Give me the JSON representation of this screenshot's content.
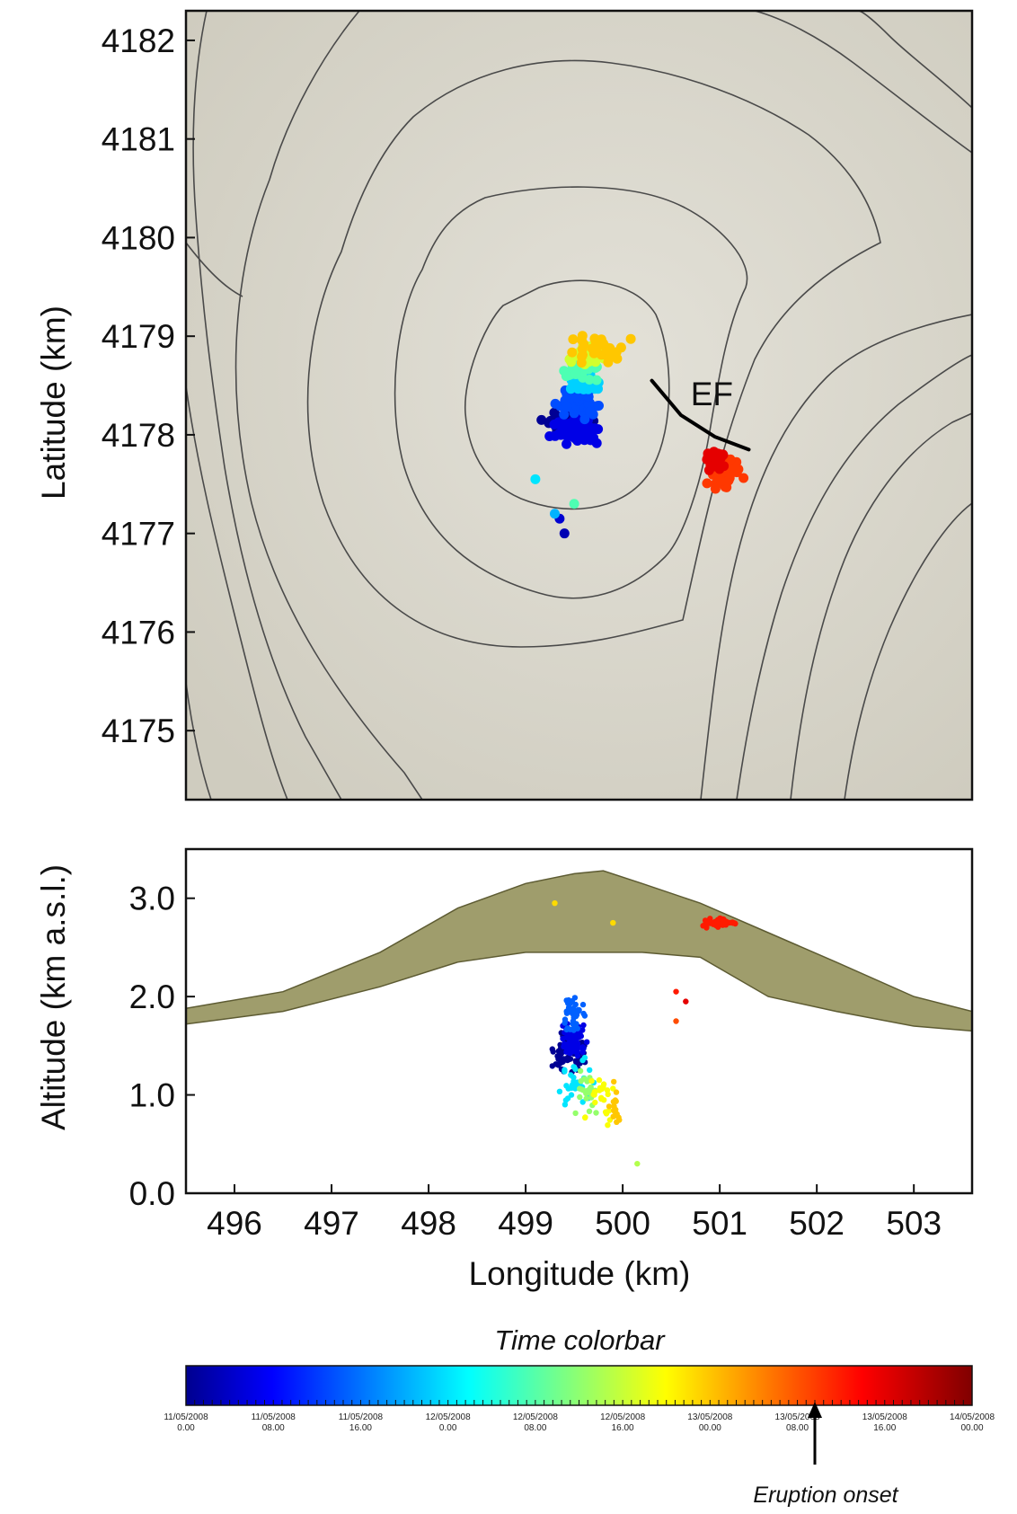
{
  "colors": {
    "map_background": "#d6d3c8",
    "contour": "#4a4a4a",
    "topo_fill": "#8e8c52",
    "topo_edge": "#5d5b32",
    "fissure": "#000000"
  },
  "chart_data": [
    {
      "type": "scatter",
      "ylabel": "Latitude (km)",
      "xlim": [
        495.5,
        503.6
      ],
      "ylim": [
        4174.3,
        4182.3
      ],
      "yticks": [
        "4175",
        "4176",
        "4177",
        "4178",
        "4179",
        "4180",
        "4181",
        "4182"
      ],
      "yticks_values": [
        4175,
        4176,
        4177,
        4178,
        4179,
        4180,
        4181,
        4182
      ],
      "grid": false,
      "annotation": "EF",
      "fissure_line": [
        [
          500.3,
          4178.55
        ],
        [
          500.6,
          4178.2
        ],
        [
          500.95,
          4177.98
        ],
        [
          501.3,
          4177.85
        ]
      ],
      "clusters": [
        {
          "time": 0.02,
          "center": [
            499.45,
            4178.1
          ],
          "spread": [
            0.28,
            0.14
          ],
          "count": 90
        },
        {
          "time": 0.1,
          "center": [
            499.55,
            4178.05
          ],
          "spread": [
            0.3,
            0.16
          ],
          "count": 70
        },
        {
          "time": 0.2,
          "center": [
            499.55,
            4178.3
          ],
          "spread": [
            0.25,
            0.15
          ],
          "count": 45
        },
        {
          "time": 0.33,
          "center": [
            499.6,
            4178.55
          ],
          "spread": [
            0.22,
            0.15
          ],
          "count": 40
        },
        {
          "time": 0.45,
          "center": [
            499.55,
            4178.65
          ],
          "spread": [
            0.22,
            0.12
          ],
          "count": 25
        },
        {
          "time": 0.58,
          "center": [
            499.6,
            4178.8
          ],
          "spread": [
            0.3,
            0.12
          ],
          "count": 30
        },
        {
          "time": 0.68,
          "center": [
            499.7,
            4178.85
          ],
          "spread": [
            0.4,
            0.2
          ],
          "count": 30
        },
        {
          "time": 0.82,
          "center": [
            501.05,
            4177.6
          ],
          "spread": [
            0.2,
            0.2
          ],
          "count": 60
        },
        {
          "time": 0.9,
          "center": [
            500.95,
            4177.75
          ],
          "spread": [
            0.15,
            0.12
          ],
          "count": 40
        }
      ],
      "outliers": [
        {
          "time": 0.05,
          "x": 499.4,
          "y": 4177.0
        },
        {
          "time": 0.08,
          "x": 499.35,
          "y": 4177.15
        },
        {
          "time": 0.3,
          "x": 499.3,
          "y": 4177.2
        },
        {
          "time": 0.45,
          "x": 499.5,
          "y": 4177.3
        },
        {
          "time": 0.35,
          "x": 499.1,
          "y": 4177.55
        }
      ]
    },
    {
      "type": "scatter",
      "xlabel": "Longitude (km)",
      "ylabel": "Altitude (km a.s.l.)",
      "xlim": [
        495.5,
        503.6
      ],
      "ylim": [
        0.0,
        3.5
      ],
      "xticks": [
        "496",
        "497",
        "498",
        "499",
        "500",
        "501",
        "502",
        "503"
      ],
      "xticks_values": [
        496,
        497,
        498,
        499,
        500,
        501,
        502,
        503
      ],
      "yticks": [
        "0.0",
        "1.0",
        "2.0",
        "3.0"
      ],
      "yticks_values": [
        0.0,
        1.0,
        2.0,
        3.0
      ],
      "grid": false,
      "topography_top": [
        [
          495.5,
          1.88
        ],
        [
          496.5,
          2.05
        ],
        [
          497.5,
          2.45
        ],
        [
          498.3,
          2.9
        ],
        [
          499.0,
          3.15
        ],
        [
          499.5,
          3.25
        ],
        [
          499.8,
          3.28
        ],
        [
          500.2,
          3.15
        ],
        [
          500.8,
          2.95
        ],
        [
          501.5,
          2.65
        ],
        [
          502.2,
          2.35
        ],
        [
          503.0,
          2.0
        ],
        [
          503.6,
          1.85
        ]
      ],
      "topography_bottom": [
        [
          495.5,
          1.72
        ],
        [
          496.5,
          1.85
        ],
        [
          497.5,
          2.1
        ],
        [
          498.3,
          2.35
        ],
        [
          499.0,
          2.45
        ],
        [
          499.5,
          2.45
        ],
        [
          500.2,
          2.45
        ],
        [
          500.8,
          2.4
        ],
        [
          501.5,
          2.0
        ],
        [
          502.2,
          1.85
        ],
        [
          503.0,
          1.7
        ],
        [
          503.6,
          1.65
        ]
      ],
      "clusters": [
        {
          "time": 0.02,
          "center": [
            499.45,
            1.45
          ],
          "spread": [
            0.18,
            0.3
          ],
          "count": 90
        },
        {
          "time": 0.1,
          "center": [
            499.5,
            1.55
          ],
          "spread": [
            0.15,
            0.25
          ],
          "count": 80
        },
        {
          "time": 0.22,
          "center": [
            499.5,
            1.8
          ],
          "spread": [
            0.15,
            0.25
          ],
          "count": 40
        },
        {
          "time": 0.35,
          "center": [
            499.5,
            1.15
          ],
          "spread": [
            0.2,
            0.35
          ],
          "count": 30
        },
        {
          "time": 0.52,
          "center": [
            499.65,
            1.05
          ],
          "spread": [
            0.2,
            0.35
          ],
          "count": 25
        },
        {
          "time": 0.62,
          "center": [
            499.75,
            1.0
          ],
          "spread": [
            0.2,
            0.3
          ],
          "count": 25
        },
        {
          "time": 0.68,
          "center": [
            499.9,
            0.85
          ],
          "spread": [
            0.15,
            0.25
          ],
          "count": 15
        },
        {
          "time": 0.85,
          "center": [
            501.0,
            2.75
          ],
          "spread": [
            0.2,
            0.05
          ],
          "count": 70
        }
      ],
      "outliers": [
        {
          "time": 0.66,
          "x": 499.3,
          "y": 2.95
        },
        {
          "time": 0.66,
          "x": 499.9,
          "y": 2.75
        },
        {
          "time": 0.85,
          "x": 500.55,
          "y": 2.05
        },
        {
          "time": 0.9,
          "x": 500.65,
          "y": 1.95
        },
        {
          "time": 0.8,
          "x": 500.55,
          "y": 1.75
        },
        {
          "time": 0.55,
          "x": 500.15,
          "y": 0.3
        }
      ]
    }
  ],
  "colorbar": {
    "title": "Time colorbar",
    "annotation": "Eruption onset",
    "annotation_position": 0.8,
    "tick_labels": [
      [
        "11/05/2008",
        "0.00"
      ],
      [
        "11/05/2008",
        "08.00"
      ],
      [
        "11/05/2008",
        "16.00"
      ],
      [
        "12/05/2008",
        "0.00"
      ],
      [
        "12/05/2008",
        "08.00"
      ],
      [
        "12/05/2008",
        "16.00"
      ],
      [
        "13/05/2008",
        "00.00"
      ],
      [
        "13/05/2008",
        "08.00"
      ],
      [
        "13/05/2008",
        "16.00"
      ],
      [
        "14/05/2008",
        "00.00"
      ]
    ]
  }
}
